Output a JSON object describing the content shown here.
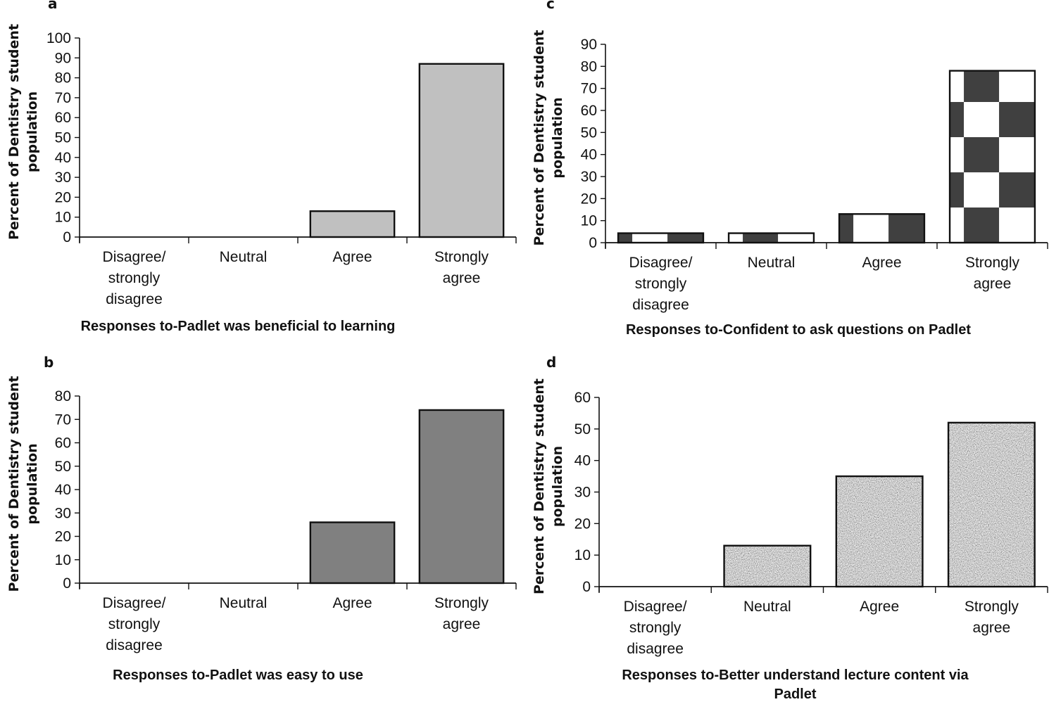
{
  "chart_data": [
    {
      "panel": "a",
      "type": "bar",
      "title": "",
      "xlabel": "Responses to-Padlet was beneficial to learning",
      "ylabel": [
        "Percent of Dentistry student",
        "population"
      ],
      "categories": [
        [
          "Disagree/",
          "strongly",
          "disagree"
        ],
        [
          "Neutral"
        ],
        [
          "Agree"
        ],
        [
          "Strongly",
          "agree"
        ]
      ],
      "values": [
        0,
        0,
        13,
        87
      ],
      "ylim": [
        0,
        100
      ],
      "yticks": [
        0,
        10,
        20,
        30,
        40,
        50,
        60,
        70,
        80,
        90,
        100
      ],
      "fill": "solid",
      "color": "#c0c0c0",
      "grid": false
    },
    {
      "panel": "c",
      "type": "bar",
      "title": "",
      "xlabel": "Responses to-Confident to ask questions on Padlet",
      "ylabel": [
        "Percent of Dentistry student",
        "population"
      ],
      "categories": [
        [
          "Disagree/",
          "strongly",
          "disagree"
        ],
        [
          "Neutral"
        ],
        [
          "Agree"
        ],
        [
          "Strongly",
          "agree"
        ]
      ],
      "values": [
        4.3,
        4.3,
        13,
        78
      ],
      "ylim": [
        0,
        90
      ],
      "yticks": [
        0,
        10,
        20,
        30,
        40,
        50,
        60,
        70,
        80,
        90
      ],
      "fill": "checker",
      "color": "#404040",
      "grid": false
    },
    {
      "panel": "b",
      "type": "bar",
      "title": "",
      "xlabel": "Responses to-Padlet was easy to use",
      "ylabel": [
        "Percent of Dentistry student",
        "population"
      ],
      "categories": [
        [
          "Disagree/",
          "strongly",
          "disagree"
        ],
        [
          "Neutral"
        ],
        [
          "Agree"
        ],
        [
          "Strongly",
          "agree"
        ]
      ],
      "values": [
        0,
        0,
        26,
        74
      ],
      "ylim": [
        0,
        80
      ],
      "yticks": [
        0,
        10,
        20,
        30,
        40,
        50,
        60,
        70,
        80
      ],
      "fill": "solid",
      "color": "#808080",
      "grid": false
    },
    {
      "panel": "d",
      "type": "bar",
      "title": "",
      "xlabel": [
        "Responses to-Better understand lecture content via",
        "Padlet"
      ],
      "ylabel": [
        "Percent of Dentistry student",
        "population"
      ],
      "categories": [
        [
          "Disagree/",
          "strongly",
          "disagree"
        ],
        [
          "Neutral"
        ],
        [
          "Agree"
        ],
        [
          "Strongly",
          "agree"
        ]
      ],
      "values": [
        0,
        13,
        35,
        52
      ],
      "ylim": [
        0,
        60
      ],
      "yticks": [
        0,
        10,
        20,
        30,
        40,
        50,
        60
      ],
      "fill": "noise",
      "color": "#a0a0a0",
      "grid": false
    }
  ]
}
